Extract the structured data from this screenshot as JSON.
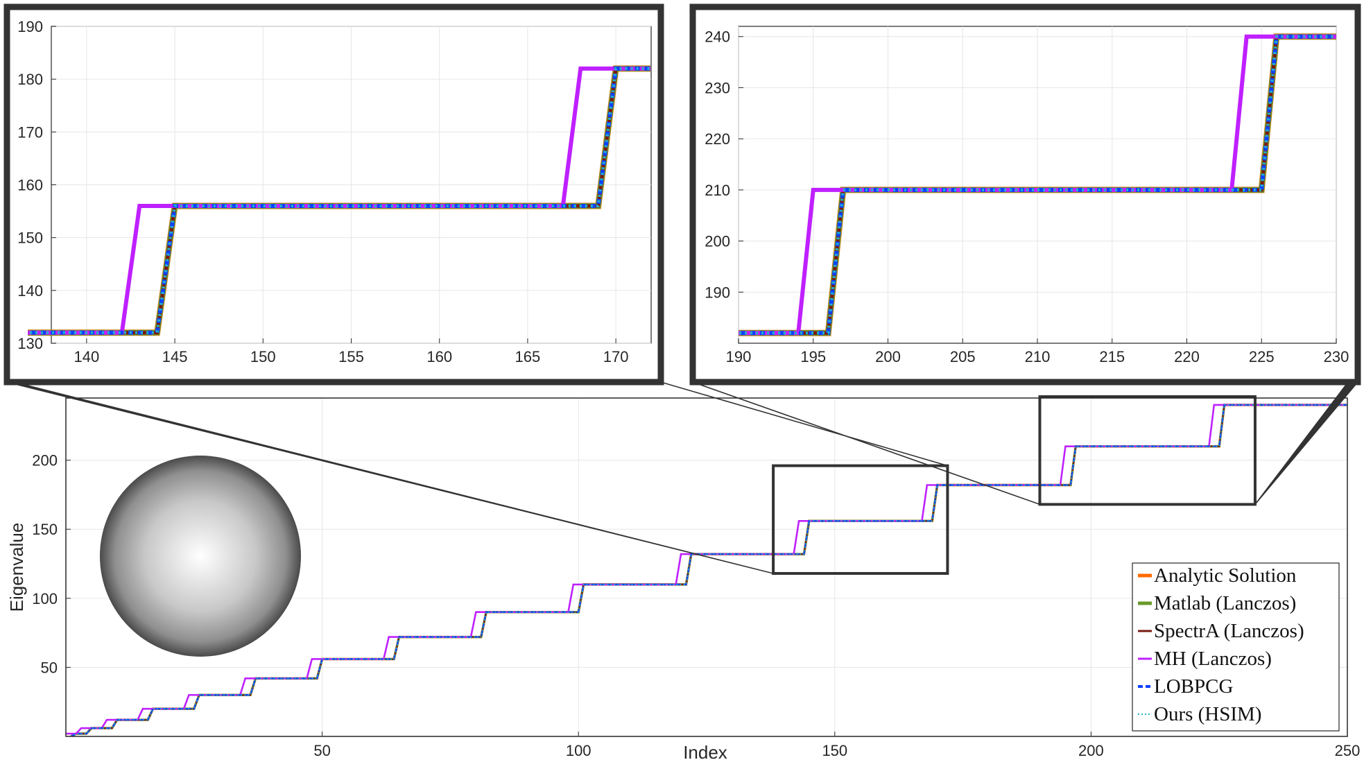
{
  "colors": {
    "analytic": "#ff6a00",
    "matlab": "#6a9a2a",
    "spectra": "#7a1a10",
    "mh": "#bf20ff",
    "lobpcg": "#1040ff",
    "ours": "#20b0d0",
    "frame": "#333333",
    "grid": "#e6e6e6"
  },
  "chart_data": [
    {
      "type": "line",
      "id": "main",
      "xlabel": "Index",
      "ylabel": "Eigenvalue",
      "xlim": [
        0,
        250
      ],
      "ylim": [
        0,
        245
      ],
      "xticks": [
        50,
        100,
        150,
        200,
        250
      ],
      "yticks": [
        50,
        100,
        150,
        200
      ],
      "grid": true,
      "legend_position": "bottom-right",
      "description_series": "step function lambda = l(l+1) with multiplicity 2l+1; MH (Lanczos) steps up about 2 indices earlier",
      "levels": [
        {
          "start": 1,
          "value": 0
        },
        {
          "start": 2,
          "value": 2
        },
        {
          "start": 5,
          "value": 6
        },
        {
          "start": 10,
          "value": 12
        },
        {
          "start": 17,
          "value": 20
        },
        {
          "start": 26,
          "value": 30
        },
        {
          "start": 37,
          "value": 42
        },
        {
          "start": 50,
          "value": 56
        },
        {
          "start": 65,
          "value": 72
        },
        {
          "start": 82,
          "value": 90
        },
        {
          "start": 101,
          "value": 110
        },
        {
          "start": 122,
          "value": 132
        },
        {
          "start": 145,
          "value": 156
        },
        {
          "start": 170,
          "value": 182
        },
        {
          "start": 197,
          "value": 210
        },
        {
          "start": 226,
          "value": 240
        }
      ],
      "mh_shift": 2,
      "x_end": 250,
      "series": [
        {
          "name": "Analytic Solution",
          "color_key": "analytic"
        },
        {
          "name": "Matlab (Lanczos)",
          "color_key": "matlab"
        },
        {
          "name": "SpectrA (Lanczos)",
          "color_key": "spectra"
        },
        {
          "name": "MH (Lanczos)",
          "color_key": "mh"
        },
        {
          "name": "LOBPCG",
          "color_key": "lobpcg"
        },
        {
          "name": "Ours (HSIM)",
          "color_key": "ours"
        }
      ],
      "zoom_boxes": [
        {
          "xlim": [
            138,
            172
          ],
          "ylim": [
            118,
            196
          ]
        },
        {
          "xlim": [
            190,
            232
          ],
          "ylim": [
            168,
            246
          ]
        }
      ]
    },
    {
      "type": "line",
      "id": "inset-left",
      "xlim": [
        138,
        172
      ],
      "ylim": [
        130,
        190
      ],
      "xticks": [
        140,
        145,
        150,
        155,
        160,
        165,
        170
      ],
      "yticks": [
        130,
        140,
        150,
        160,
        170,
        180,
        190
      ],
      "grid": true,
      "levels": [
        {
          "start": 122,
          "value": 132
        },
        {
          "start": 145,
          "value": 156
        },
        {
          "start": 170,
          "value": 182
        }
      ],
      "mh_shift": 2,
      "x_end": 172
    },
    {
      "type": "line",
      "id": "inset-right",
      "xlim": [
        190,
        230
      ],
      "ylim": [
        180,
        242
      ],
      "xticks": [
        190,
        195,
        200,
        205,
        210,
        215,
        220,
        225,
        230
      ],
      "yticks": [
        190,
        200,
        210,
        220,
        230,
        240
      ],
      "grid": true,
      "levels": [
        {
          "start": 170,
          "value": 182
        },
        {
          "start": 197,
          "value": 210
        },
        {
          "start": 226,
          "value": 240
        }
      ],
      "mh_shift": 2,
      "x_end": 230
    }
  ]
}
